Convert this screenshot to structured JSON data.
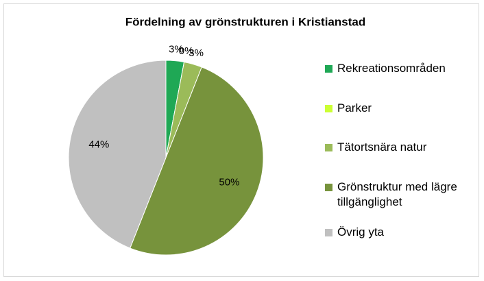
{
  "chart_data": {
    "type": "pie",
    "title": "Fördelning av grönstrukturen i Kristianstad",
    "categories": [
      "Rekreationsområden",
      "Parker",
      "Tätortsnära natur",
      "Grönstruktur med lägre tillgänglighet",
      "Övrig yta"
    ],
    "values": [
      3,
      0,
      3,
      50,
      44
    ],
    "value_labels": [
      "3%",
      "0%",
      "3%",
      "50%",
      "44%"
    ],
    "colors": [
      "#1fa855",
      "#ccff33",
      "#9bbb59",
      "#77933c",
      "#c0c0c0"
    ],
    "legend": "right"
  }
}
